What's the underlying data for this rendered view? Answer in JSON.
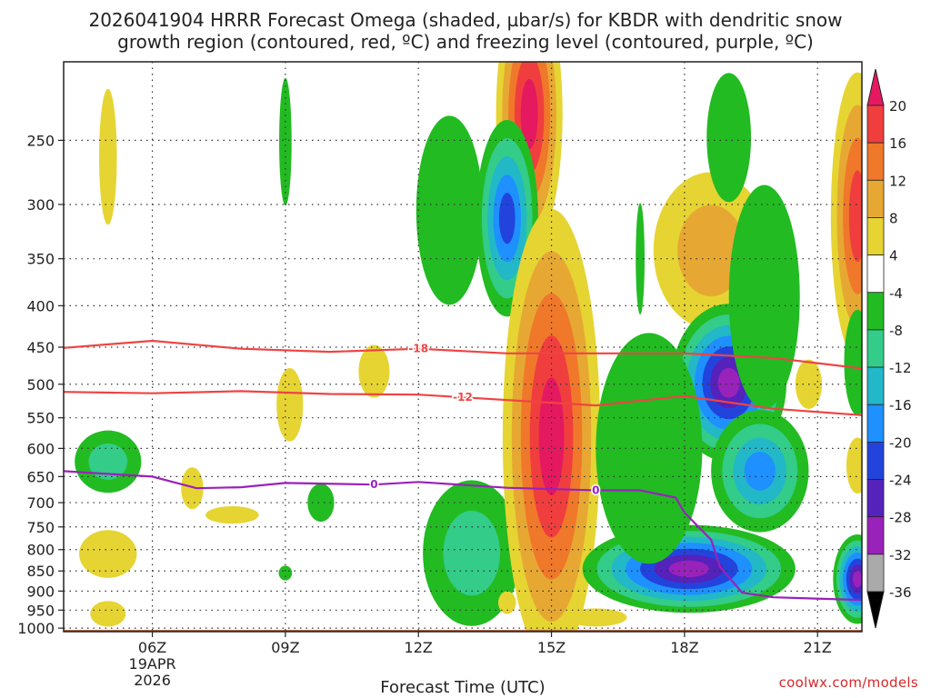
{
  "title_line1": "2026041904 HRRR Forecast Omega (shaded, µbar/s) for KBDR with dendritic snow",
  "title_line2": "growth region (contoured, red, ºC) and freezing level (contoured, purple, ºC)",
  "watermark": "coolwx.com/models",
  "chart_data": {
    "type": "time-height contour",
    "xlabel": "Forecast Time (UTC)",
    "x_ticks": [
      {
        "h": 6,
        "label": "06Z",
        "sub": [
          "19APR",
          "2026"
        ]
      },
      {
        "h": 9,
        "label": "09Z"
      },
      {
        "h": 12,
        "label": "12Z"
      },
      {
        "h": 15,
        "label": "15Z"
      },
      {
        "h": 18,
        "label": "18Z"
      },
      {
        "h": 21,
        "label": "21Z"
      }
    ],
    "xlim": [
      4,
      22
    ],
    "y_ticks": [
      250,
      300,
      350,
      400,
      450,
      500,
      550,
      600,
      650,
      700,
      750,
      800,
      850,
      900,
      950,
      1000
    ],
    "ylim": [
      200,
      1010
    ],
    "y_direction": "pressure, increasing downward",
    "grid": true,
    "colorbar": {
      "labels": [
        "20",
        "16",
        "12",
        "8",
        "4",
        "-4",
        "-8",
        "-12",
        "-16",
        "-20",
        "-24",
        "-28",
        "-32",
        "-36"
      ],
      "colors": [
        "#e4195f",
        "#f03e3e",
        "#f0782a",
        "#e6a833",
        "#e6d433",
        "#ffffff",
        "#22bb22",
        "#33cc88",
        "#22b8c8",
        "#1e90ff",
        "#2244dd",
        "#5522bb",
        "#9922bb",
        "#aaaaaa",
        "#000000"
      ]
    },
    "lines": [
      {
        "label": "-18",
        "color": "#ee4444",
        "label_at": 12,
        "points": [
          [
            4,
            451
          ],
          [
            6,
            442
          ],
          [
            8,
            452
          ],
          [
            10,
            456
          ],
          [
            12,
            452
          ],
          [
            14,
            458
          ],
          [
            16,
            458
          ],
          [
            18,
            458
          ],
          [
            20,
            464
          ],
          [
            22,
            478
          ]
        ]
      },
      {
        "label": "-12",
        "color": "#ee4444",
        "label_at": 13,
        "points": [
          [
            4,
            511
          ],
          [
            6,
            513
          ],
          [
            8,
            510
          ],
          [
            10,
            514
          ],
          [
            12,
            515
          ],
          [
            13,
            519
          ],
          [
            15,
            527
          ],
          [
            16,
            531
          ],
          [
            18,
            517
          ],
          [
            20,
            536
          ],
          [
            22,
            546
          ]
        ]
      },
      {
        "label": "0",
        "color": "#9922bb",
        "label_at": 11,
        "points": [
          [
            4,
            640
          ],
          [
            6,
            650
          ],
          [
            7,
            672
          ],
          [
            8,
            670
          ],
          [
            9,
            662
          ],
          [
            11,
            665
          ],
          [
            12,
            660
          ],
          [
            14,
            671
          ],
          [
            16,
            676
          ],
          [
            17,
            676
          ],
          [
            17.8,
            690
          ],
          [
            18,
            720
          ],
          [
            18.6,
            778
          ],
          [
            18.8,
            840
          ],
          [
            19.3,
            904
          ],
          [
            20,
            916
          ],
          [
            22,
            923
          ]
        ]
      },
      {
        "label": "0",
        "color": "#9922bb",
        "label_at": 16,
        "points": []
      }
    ],
    "blobs": [
      {
        "cx": 5,
        "cy": 262,
        "rx": 0.2,
        "ry": 50,
        "vals": [
          4
        ]
      },
      {
        "cx": 5,
        "cy": 623,
        "rx": 0.75,
        "ry": 55,
        "vals": [
          -4,
          -8
        ]
      },
      {
        "cx": 5,
        "cy": 810,
        "rx": 0.65,
        "ry": 55,
        "vals": [
          4
        ]
      },
      {
        "cx": 5,
        "cy": 960,
        "rx": 0.4,
        "ry": 35,
        "vals": [
          4
        ]
      },
      {
        "cx": 6.9,
        "cy": 672,
        "rx": 0.25,
        "ry": 40,
        "vals": [
          4
        ]
      },
      {
        "cx": 7.8,
        "cy": 725,
        "rx": 0.6,
        "ry": 18,
        "vals": [
          4
        ]
      },
      {
        "cx": 9,
        "cy": 251,
        "rx": 0.14,
        "ry": 45,
        "vals": [
          -4
        ]
      },
      {
        "cx": 9.1,
        "cy": 530,
        "rx": 0.3,
        "ry": 55,
        "vals": [
          4
        ]
      },
      {
        "cx": 9,
        "cy": 855,
        "rx": 0.15,
        "ry": 18,
        "vals": [
          -4
        ]
      },
      {
        "cx": 9.8,
        "cy": 700,
        "rx": 0.3,
        "ry": 38,
        "vals": [
          -4
        ]
      },
      {
        "cx": 11,
        "cy": 482,
        "rx": 0.35,
        "ry": 36,
        "vals": [
          4
        ]
      },
      {
        "cx": 12.7,
        "cy": 305,
        "rx": 0.75,
        "ry": 80,
        "vals": [
          -4
        ]
      },
      {
        "cx": 13.2,
        "cy": 808,
        "rx": 1.1,
        "ry": 165,
        "vals": [
          -4,
          -8
        ]
      },
      {
        "cx": 14,
        "cy": 930,
        "rx": 0.2,
        "ry": 30,
        "vals": [
          4
        ]
      },
      {
        "cx": 14.5,
        "cy": 232,
        "rx": 0.75,
        "ry": 85,
        "vals": [
          4,
          8,
          12,
          16,
          20
        ]
      },
      {
        "cx": 14,
        "cy": 312,
        "rx": 0.7,
        "ry": 85,
        "vals": [
          -4,
          -8,
          -12,
          -16,
          -20
        ]
      },
      {
        "cx": 15,
        "cy": 580,
        "rx": 1.1,
        "ry": 330,
        "vals": [
          4,
          8,
          12,
          16,
          20
        ]
      },
      {
        "cx": 17,
        "cy": 350,
        "rx": 0.1,
        "ry": 55,
        "vals": [
          -4
        ]
      },
      {
        "cx": 16,
        "cy": 970,
        "rx": 0.7,
        "ry": 25,
        "vals": [
          4
        ]
      },
      {
        "cx": 18.1,
        "cy": 845,
        "rx": 2.4,
        "ry": 105,
        "vals": [
          -4,
          -8,
          -12,
          -16,
          -20,
          -24,
          -28
        ]
      },
      {
        "cx": 18.6,
        "cy": 342,
        "rx": 1.3,
        "ry": 75,
        "vals": [
          4,
          8
        ]
      },
      {
        "cx": 19,
        "cy": 248,
        "rx": 0.5,
        "ry": 45,
        "vals": [
          -4
        ]
      },
      {
        "cx": 19,
        "cy": 498,
        "rx": 1.3,
        "ry": 110,
        "vals": [
          -4,
          -8,
          -12,
          -16,
          -20,
          -24,
          -28
        ]
      },
      {
        "cx": 19.7,
        "cy": 640,
        "rx": 1.1,
        "ry": 110,
        "vals": [
          -4,
          -8,
          -12,
          -16
        ]
      },
      {
        "cx": 17.2,
        "cy": 600,
        "rx": 1.2,
        "ry": 190,
        "vals": [
          -4
        ]
      },
      {
        "cx": 19.8,
        "cy": 390,
        "rx": 0.8,
        "ry": 120,
        "vals": [
          -4
        ]
      },
      {
        "cx": 20.8,
        "cy": 500,
        "rx": 0.3,
        "ry": 35,
        "vals": [
          4
        ]
      },
      {
        "cx": 21.9,
        "cy": 310,
        "rx": 0.6,
        "ry": 120,
        "vals": [
          4,
          8,
          12,
          16
        ]
      },
      {
        "cx": 21.9,
        "cy": 470,
        "rx": 0.3,
        "ry": 70,
        "vals": [
          -4
        ]
      },
      {
        "cx": 21.9,
        "cy": 630,
        "rx": 0.25,
        "ry": 50,
        "vals": [
          4
        ]
      },
      {
        "cx": 21.9,
        "cy": 870,
        "rx": 0.55,
        "ry": 110,
        "vals": [
          -4,
          -8,
          -12,
          -16,
          -20,
          -24,
          -28
        ]
      }
    ]
  }
}
